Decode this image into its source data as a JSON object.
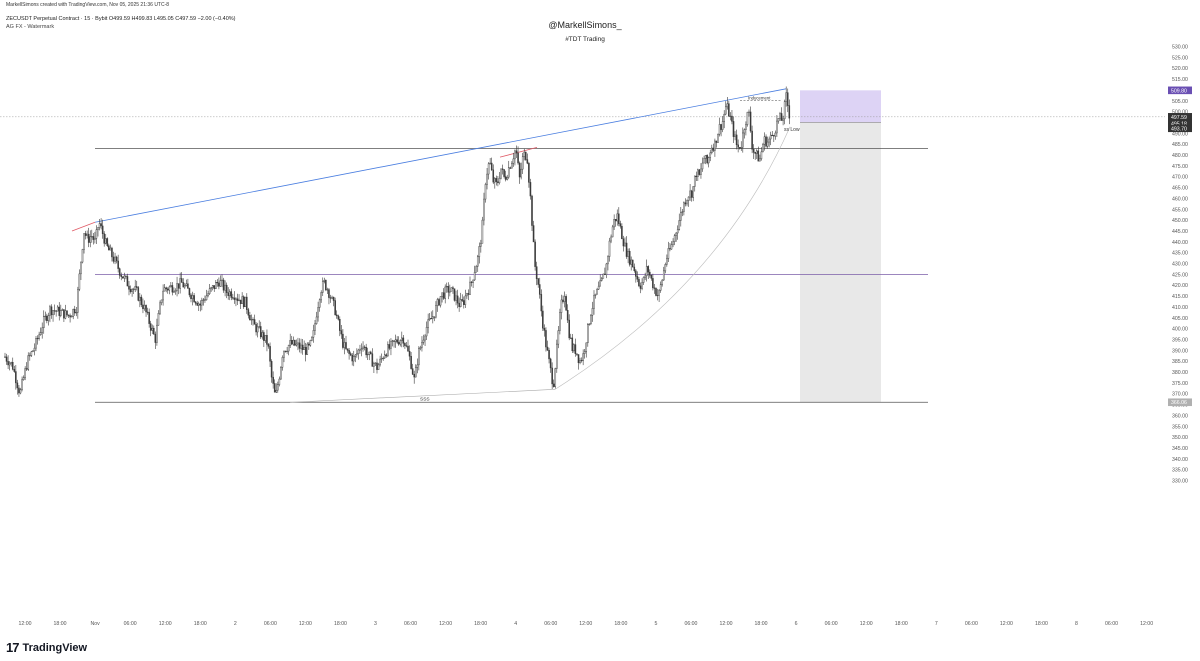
{
  "header": {
    "credit": "MarkellSimons created with TradingView.com, Nov 05, 2025 21:36 UTC-8",
    "symbol_line": "ZECUSDT Perpetual Contract · 15 · Bybit  O499.59  H499.83  L495.05  C497.59  −2.00 (−0.40%)",
    "indicator_line": "AG FX - Watermark"
  },
  "watermark": {
    "handle": "@MarkellSimons_",
    "tag": "#TDT Trading"
  },
  "branding": {
    "logo_mark": "17",
    "logo_text": "TradingView"
  },
  "colors": {
    "candle": "#3a3a3a",
    "trendline_upper": "#4a7ee0",
    "trendline_red": "#e05a66",
    "horizontal_line": "#555555",
    "purple_line": "#7b5ea8",
    "target_zone": "#ddd3f5",
    "stop_zone": "#e8e8e8",
    "price_tag_purple": "#6a4fb3",
    "price_tag_dark": "#333333",
    "price_tag_gray": "#b0b0b0"
  },
  "chart_data": {
    "type": "candlestick",
    "symbol": "ZECUSDT",
    "timeframe": "15",
    "ylim": [
      325,
      532
    ],
    "y_ticks": [
      "330.00",
      "335.00",
      "340.00",
      "345.00",
      "350.00",
      "355.00",
      "360.00",
      "365.00",
      "370.00",
      "375.00",
      "380.00",
      "385.00",
      "390.00",
      "395.00",
      "400.00",
      "405.00",
      "410.00",
      "415.00",
      "420.00",
      "425.00",
      "430.00",
      "435.00",
      "440.00",
      "445.00",
      "450.00",
      "455.00",
      "460.00",
      "465.00",
      "470.00",
      "475.00",
      "480.00",
      "485.00",
      "490.00",
      "495.00",
      "500.00",
      "505.00",
      "510.00",
      "515.00",
      "520.00",
      "525.00",
      "530.00"
    ],
    "x_ticks": [
      "12:00",
      "18:00",
      "Nov",
      "06:00",
      "12:00",
      "18:00",
      "2",
      "06:00",
      "12:00",
      "18:00",
      "3",
      "06:00",
      "12:00",
      "18:00",
      "4",
      "06:00",
      "12:00",
      "18:00",
      "5",
      "06:00",
      "12:00",
      "18:00",
      "6",
      "06:00",
      "12:00",
      "18:00",
      "7",
      "06:00",
      "12:00",
      "18:00",
      "8",
      "06:00",
      "12:00"
    ],
    "x_range_hours": [
      -18,
      180
    ],
    "series_path": [
      [
        -22,
        387
      ],
      [
        -20,
        383
      ],
      [
        -18,
        370
      ],
      [
        -16,
        385
      ],
      [
        -14,
        392
      ],
      [
        -12,
        402
      ],
      [
        -10,
        409
      ],
      [
        -8,
        408
      ],
      [
        -5,
        406
      ],
      [
        -3,
        410
      ],
      [
        -1,
        445
      ],
      [
        0,
        441
      ],
      [
        1,
        443
      ],
      [
        2,
        440
      ],
      [
        3,
        449
      ],
      [
        4,
        444
      ],
      [
        5,
        438
      ],
      [
        7,
        432
      ],
      [
        9,
        425
      ],
      [
        11,
        420
      ],
      [
        13,
        417
      ],
      [
        14,
        413
      ],
      [
        15,
        410
      ],
      [
        16,
        405
      ],
      [
        17,
        400
      ],
      [
        18,
        395
      ],
      [
        19,
        407
      ],
      [
        20,
        418
      ],
      [
        22,
        419
      ],
      [
        24,
        420
      ],
      [
        25,
        421
      ],
      [
        27,
        417
      ],
      [
        29,
        413
      ],
      [
        30,
        411
      ],
      [
        31,
        414
      ],
      [
        33,
        418
      ],
      [
        35,
        422
      ],
      [
        37,
        417
      ],
      [
        39,
        416
      ],
      [
        40,
        414
      ],
      [
        42,
        412
      ],
      [
        44,
        402
      ],
      [
        46,
        398
      ],
      [
        48,
        393
      ],
      [
        49,
        377
      ],
      [
        50,
        368
      ],
      [
        51,
        378
      ],
      [
        52,
        390
      ],
      [
        54,
        393
      ],
      [
        56,
        392
      ],
      [
        58,
        390
      ],
      [
        59,
        391
      ],
      [
        60,
        396
      ],
      [
        61,
        408
      ],
      [
        62,
        418
      ],
      [
        63,
        421
      ],
      [
        64,
        418
      ],
      [
        66,
        408
      ],
      [
        67,
        400
      ],
      [
        68,
        393
      ],
      [
        69,
        389
      ],
      [
        71,
        386
      ],
      [
        73,
        393
      ],
      [
        75,
        387
      ],
      [
        77,
        382
      ],
      [
        78,
        385
      ],
      [
        79,
        389
      ],
      [
        81,
        392
      ],
      [
        82,
        394
      ],
      [
        84,
        396
      ],
      [
        86,
        385
      ],
      [
        87,
        376
      ],
      [
        88,
        388
      ],
      [
        90,
        400
      ],
      [
        92,
        406
      ],
      [
        94,
        415
      ],
      [
        96,
        418
      ],
      [
        97,
        417
      ],
      [
        99,
        411
      ],
      [
        100,
        412
      ],
      [
        101,
        417
      ],
      [
        102,
        420
      ],
      [
        103,
        427
      ],
      [
        104,
        433
      ],
      [
        105,
        445
      ],
      [
        106,
        470
      ],
      [
        107,
        477
      ],
      [
        108,
        468
      ],
      [
        109,
        466
      ],
      [
        110,
        474
      ],
      [
        111,
        469
      ],
      [
        113,
        478
      ],
      [
        114,
        483
      ],
      [
        115,
        469
      ],
      [
        116,
        480
      ],
      [
        117,
        480
      ],
      [
        118,
        458
      ],
      [
        119,
        430
      ],
      [
        120,
        420
      ],
      [
        121,
        405
      ],
      [
        122,
        393
      ],
      [
        123,
        383
      ],
      [
        124,
        374
      ],
      [
        125,
        392
      ],
      [
        126,
        410
      ],
      [
        127,
        417
      ],
      [
        128,
        400
      ],
      [
        129,
        391
      ],
      [
        130,
        390
      ],
      [
        131,
        385
      ],
      [
        132,
        388
      ],
      [
        133,
        398
      ],
      [
        134,
        408
      ],
      [
        135,
        414
      ],
      [
        136,
        418
      ],
      [
        137,
        422
      ],
      [
        138,
        428
      ],
      [
        139,
        440
      ],
      [
        140,
        449
      ],
      [
        141,
        452
      ],
      [
        142,
        445
      ],
      [
        143,
        438
      ],
      [
        144,
        433
      ],
      [
        145,
        430
      ],
      [
        146,
        425
      ],
      [
        147,
        420
      ],
      [
        148,
        422
      ],
      [
        149,
        428
      ],
      [
        150,
        423
      ],
      [
        151,
        418
      ],
      [
        152,
        415
      ],
      [
        153,
        423
      ],
      [
        154,
        432
      ],
      [
        155,
        436
      ],
      [
        156,
        441
      ],
      [
        157,
        447
      ],
      [
        158,
        453
      ],
      [
        159,
        459
      ],
      [
        160,
        462
      ],
      [
        161,
        463
      ],
      [
        162,
        472
      ],
      [
        163,
        470
      ],
      [
        164,
        479
      ],
      [
        165,
        476
      ],
      [
        166,
        484
      ],
      [
        167,
        485
      ],
      [
        168,
        492
      ],
      [
        169,
        495
      ],
      [
        170,
        503
      ],
      [
        171,
        498
      ],
      [
        172,
        490
      ],
      [
        173,
        483
      ],
      [
        174,
        485
      ],
      [
        175,
        495
      ],
      [
        176,
        500
      ],
      [
        177,
        483
      ],
      [
        178,
        480
      ],
      [
        179,
        478
      ],
      [
        180,
        487
      ],
      [
        181,
        486
      ],
      [
        182,
        488
      ],
      [
        183,
        492
      ],
      [
        184,
        497
      ],
      [
        185,
        496
      ],
      [
        186,
        507
      ],
      [
        187,
        497
      ]
    ],
    "annotations": {
      "ssl_label": "SSS",
      "inducement_label": "Inducement",
      "low_label": "ss Low",
      "horizontal_levels": [
        {
          "price": 483.0,
          "color": "horizontal_line"
        },
        {
          "price": 425.0,
          "color": "purple_line"
        },
        {
          "price": 366.06,
          "color": "horizontal_line"
        }
      ],
      "upper_trendline": {
        "from": [
          0,
          449.0
        ],
        "to": [
          187,
          510.5
        ]
      },
      "red_trendline_1": {
        "from": [
          -1,
          445.0
        ],
        "to": [
          0,
          449.0
        ]
      },
      "red_trendline_2": {
        "from": [
          105,
          479.0
        ],
        "to": [
          114,
          483.5
        ]
      },
      "lower_trendline": {
        "from": [
          48,
          366.0
        ],
        "to": [
          124,
          372.0
        ]
      },
      "curve": {
        "from": [
          124,
          372.0
        ],
        "to": [
          188,
          493.0
        ]
      },
      "inducement_line": {
        "from": [
          160,
          505.0
        ],
        "to": [
          171,
          505.0
        ]
      },
      "position": {
        "target_top": 509.8,
        "entry": 495.0,
        "stop": 366.06,
        "x_start": 188,
        "x_end": 200
      },
      "price_tags": [
        {
          "label": "509.80",
          "price": 509.8,
          "style": "purple"
        },
        {
          "label": "497.59",
          "price": 497.59,
          "style": "dark"
        },
        {
          "label": "495.18",
          "price": 495.18,
          "style": "dark"
        },
        {
          "label": "493.70",
          "price": 493.7,
          "style": "dark"
        },
        {
          "label": "366.06",
          "price": 366.06,
          "style": "gray"
        }
      ]
    }
  }
}
